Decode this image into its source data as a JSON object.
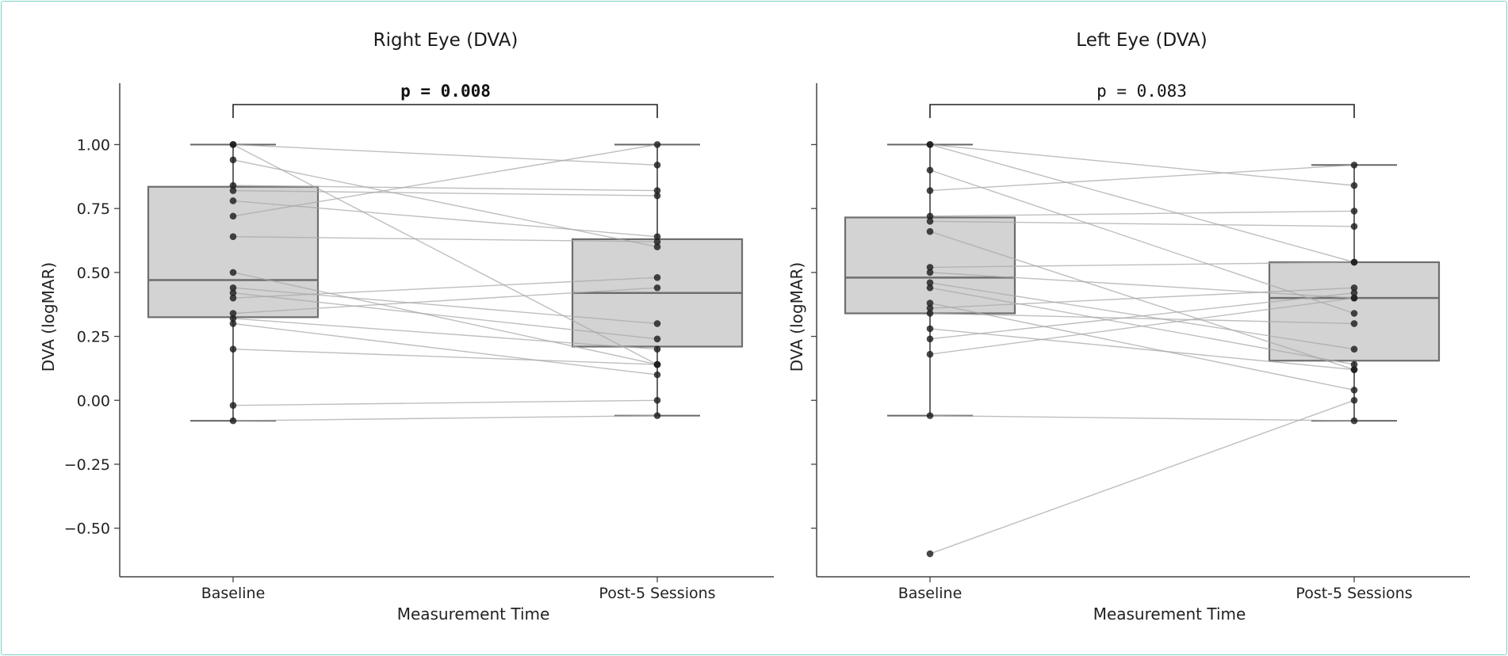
{
  "chart_data": [
    {
      "type": "box",
      "title": "Right Eye (DVA)",
      "xlabel": "Measurement Time",
      "ylabel": "DVA (logMAR)",
      "categories": [
        "Baseline",
        "Post-5 Sessions"
      ],
      "ylim": [
        -0.69,
        1.24
      ],
      "yticks": [
        -0.5,
        -0.25,
        0.0,
        0.25,
        0.5,
        0.75,
        1.0
      ],
      "ytick_labels": [
        "−0.50",
        "−0.25",
        "0.00",
        "0.25",
        "0.50",
        "0.75",
        "1.00"
      ],
      "boxes": [
        {
          "category": "Baseline",
          "q1": 0.325,
          "median": 0.47,
          "q3": 0.835,
          "whisker_low": -0.08,
          "whisker_high": 1.0
        },
        {
          "category": "Post-5 Sessions",
          "q1": 0.21,
          "median": 0.42,
          "q3": 0.63,
          "whisker_low": -0.06,
          "whisker_high": 1.0
        }
      ],
      "paired": {
        "baseline": [
          1.0,
          1.0,
          0.94,
          0.84,
          0.82,
          0.78,
          0.72,
          0.64,
          0.5,
          0.44,
          0.42,
          0.4,
          0.34,
          0.32,
          0.3,
          0.2,
          -0.02,
          -0.08
        ],
        "post": [
          0.92,
          0.14,
          0.6,
          0.82,
          0.8,
          0.64,
          1.0,
          0.62,
          0.14,
          0.3,
          0.24,
          0.48,
          0.44,
          0.2,
          0.1,
          0.14,
          0.0,
          -0.06
        ]
      },
      "annotation": {
        "text": "p = 0.008",
        "bold": true
      }
    },
    {
      "type": "box",
      "title": "Left Eye (DVA)",
      "xlabel": "Measurement Time",
      "ylabel": "DVA (logMAR)",
      "categories": [
        "Baseline",
        "Post-5 Sessions"
      ],
      "ylim": [
        -0.69,
        1.24
      ],
      "yticks": [
        -0.5,
        -0.25,
        0.0,
        0.25,
        0.5,
        0.75,
        1.0
      ],
      "boxes": [
        {
          "category": "Baseline",
          "q1": 0.34,
          "median": 0.48,
          "q3": 0.715,
          "whisker_low": -0.06,
          "whisker_high": 1.0
        },
        {
          "category": "Post-5 Sessions",
          "q1": 0.155,
          "median": 0.4,
          "q3": 0.54,
          "whisker_low": -0.08,
          "whisker_high": 0.92
        }
      ],
      "paired": {
        "baseline": [
          1.0,
          1.0,
          0.9,
          0.82,
          0.72,
          0.7,
          0.66,
          0.52,
          0.5,
          0.46,
          0.44,
          0.38,
          0.36,
          0.34,
          0.28,
          0.24,
          0.18,
          -0.06,
          -0.6
        ],
        "post": [
          0.54,
          0.84,
          0.34,
          0.92,
          0.74,
          0.68,
          0.12,
          0.54,
          0.4,
          0.2,
          0.14,
          0.04,
          0.44,
          0.3,
          0.12,
          0.42,
          0.4,
          -0.08,
          0.0
        ]
      },
      "annotation": {
        "text": "p = 0.083",
        "bold": false
      }
    }
  ]
}
